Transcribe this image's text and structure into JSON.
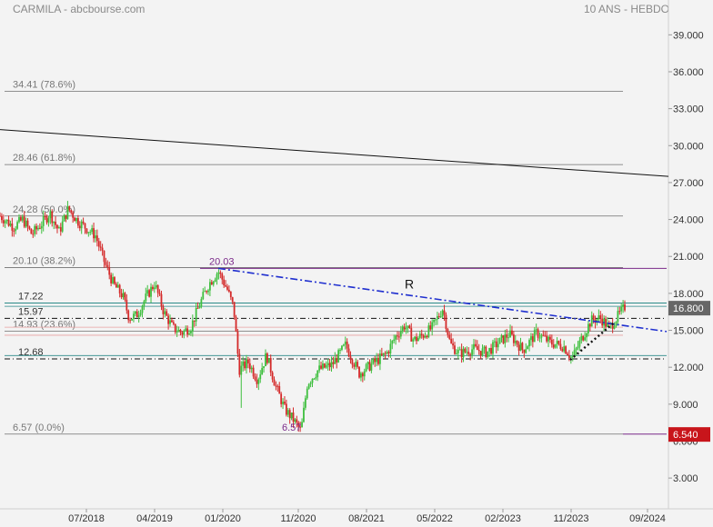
{
  "header": {
    "left": "CARMILA - abcbourse.com",
    "right": "10 ANS - HEBDO"
  },
  "chart_data": {
    "type": "candlestick",
    "ylim": [
      0.5,
      40.5
    ],
    "ytick_values": [
      3,
      6,
      9,
      12,
      15,
      18,
      21,
      24,
      27,
      30,
      33,
      36,
      39
    ],
    "ytick_labels": [
      "3.000",
      "6.000",
      "9.000",
      "12.000",
      "15.000",
      "18.000",
      "21.000",
      "24.000",
      "27.000",
      "30.000",
      "33.000",
      "36.000",
      "39.000"
    ],
    "xlim": [
      2017.55,
      2024.9
    ],
    "xticks": [
      {
        "t": 2018.5,
        "label": "07/2018"
      },
      {
        "t": 2019.25,
        "label": "04/2019"
      },
      {
        "t": 2020.0,
        "label": "01/2020"
      },
      {
        "t": 2020.83,
        "label": "11/2020"
      },
      {
        "t": 2021.58,
        "label": "08/2021"
      },
      {
        "t": 2022.33,
        "label": "05/2022"
      },
      {
        "t": 2023.08,
        "label": "02/2023"
      },
      {
        "t": 2023.83,
        "label": "11/2023"
      },
      {
        "t": 2024.67,
        "label": "09/2024"
      }
    ],
    "fib_levels": [
      {
        "value": 34.41,
        "label": "34.41  (78.6%)"
      },
      {
        "value": 28.46,
        "label": "28.46  (61.8%)"
      },
      {
        "value": 24.28,
        "label": "24.28  (50.0%)"
      },
      {
        "value": 20.1,
        "label": "20.10  (38.2%)"
      },
      {
        "value": 14.93,
        "label": "14.93  (23.6%)"
      },
      {
        "value": 6.57,
        "label": "6.57  (0.0%)"
      }
    ],
    "levels": [
      {
        "value": 17.22,
        "label": "17.22"
      },
      {
        "value": 15.97,
        "label": "15.97"
      },
      {
        "value": 12.68,
        "label": "12.68"
      }
    ],
    "annotations": [
      {
        "text": "20.03",
        "t": 2019.85,
        "value": 20.03
      },
      {
        "text": "6.57",
        "t": 2020.65,
        "value": 6.57
      },
      {
        "text": "R",
        "t": 2022.0,
        "value": 18.4
      }
    ],
    "long_trendline": [
      {
        "t": 2017.55,
        "value": 31.3
      },
      {
        "t": 2024.9,
        "value": 27.5
      }
    ],
    "resistance_line": [
      {
        "t": 2019.95,
        "value": 20.03
      },
      {
        "t": 2024.9,
        "value": 14.9
      }
    ],
    "support_dotted": [
      {
        "t": 2023.82,
        "value": 12.6
      },
      {
        "t": 2024.3,
        "value": 15.6
      }
    ],
    "last_price": {
      "value": 16.8,
      "label": "16.800"
    },
    "low_marker": {
      "value": 6.54,
      "label": "6.540"
    },
    "anchors": [
      {
        "t": 2017.55,
        "v": 24.3
      },
      {
        "t": 2017.7,
        "v": 23.4
      },
      {
        "t": 2017.8,
        "v": 24.0
      },
      {
        "t": 2017.9,
        "v": 22.8
      },
      {
        "t": 2018.0,
        "v": 23.6
      },
      {
        "t": 2018.1,
        "v": 24.5
      },
      {
        "t": 2018.2,
        "v": 23.0
      },
      {
        "t": 2018.3,
        "v": 24.9
      },
      {
        "t": 2018.4,
        "v": 23.9
      },
      {
        "t": 2018.5,
        "v": 23.3
      },
      {
        "t": 2018.6,
        "v": 22.7
      },
      {
        "t": 2018.7,
        "v": 20.5
      },
      {
        "t": 2018.8,
        "v": 18.7
      },
      {
        "t": 2018.9,
        "v": 17.8
      },
      {
        "t": 2018.97,
        "v": 16.0
      },
      {
        "t": 2019.05,
        "v": 16.2
      },
      {
        "t": 2019.15,
        "v": 17.6
      },
      {
        "t": 2019.25,
        "v": 18.8
      },
      {
        "t": 2019.35,
        "v": 16.5
      },
      {
        "t": 2019.45,
        "v": 15.2
      },
      {
        "t": 2019.55,
        "v": 14.8
      },
      {
        "t": 2019.65,
        "v": 15.3
      },
      {
        "t": 2019.75,
        "v": 17.2
      },
      {
        "t": 2019.85,
        "v": 18.8
      },
      {
        "t": 2019.95,
        "v": 19.8
      },
      {
        "t": 2020.05,
        "v": 18.3
      },
      {
        "t": 2020.12,
        "v": 16.8
      },
      {
        "t": 2020.18,
        "v": 11.8
      },
      {
        "t": 2020.28,
        "v": 12.4
      },
      {
        "t": 2020.38,
        "v": 11.0
      },
      {
        "t": 2020.48,
        "v": 13.0
      },
      {
        "t": 2020.58,
        "v": 10.5
      },
      {
        "t": 2020.68,
        "v": 8.6
      },
      {
        "t": 2020.78,
        "v": 7.7
      },
      {
        "t": 2020.86,
        "v": 6.8
      },
      {
        "t": 2020.93,
        "v": 10.7
      },
      {
        "t": 2021.05,
        "v": 11.8
      },
      {
        "t": 2021.2,
        "v": 12.2
      },
      {
        "t": 2021.35,
        "v": 13.8
      },
      {
        "t": 2021.5,
        "v": 11.5
      },
      {
        "t": 2021.65,
        "v": 12.3
      },
      {
        "t": 2021.8,
        "v": 13.1
      },
      {
        "t": 2021.9,
        "v": 14.5
      },
      {
        "t": 2022.0,
        "v": 15.4
      },
      {
        "t": 2022.1,
        "v": 14.2
      },
      {
        "t": 2022.2,
        "v": 14.6
      },
      {
        "t": 2022.3,
        "v": 15.2
      },
      {
        "t": 2022.42,
        "v": 16.8
      },
      {
        "t": 2022.5,
        "v": 13.9
      },
      {
        "t": 2022.6,
        "v": 13.1
      },
      {
        "t": 2022.75,
        "v": 13.5
      },
      {
        "t": 2022.9,
        "v": 13.2
      },
      {
        "t": 2023.0,
        "v": 13.8
      },
      {
        "t": 2023.15,
        "v": 14.7
      },
      {
        "t": 2023.3,
        "v": 13.4
      },
      {
        "t": 2023.45,
        "v": 14.8
      },
      {
        "t": 2023.6,
        "v": 14.0
      },
      {
        "t": 2023.75,
        "v": 13.7
      },
      {
        "t": 2023.84,
        "v": 12.7
      },
      {
        "t": 2023.95,
        "v": 14.4
      },
      {
        "t": 2024.05,
        "v": 15.8
      },
      {
        "t": 2024.15,
        "v": 16.0
      },
      {
        "t": 2024.25,
        "v": 15.2
      },
      {
        "t": 2024.35,
        "v": 16.2
      },
      {
        "t": 2024.42,
        "v": 16.9
      }
    ]
  }
}
